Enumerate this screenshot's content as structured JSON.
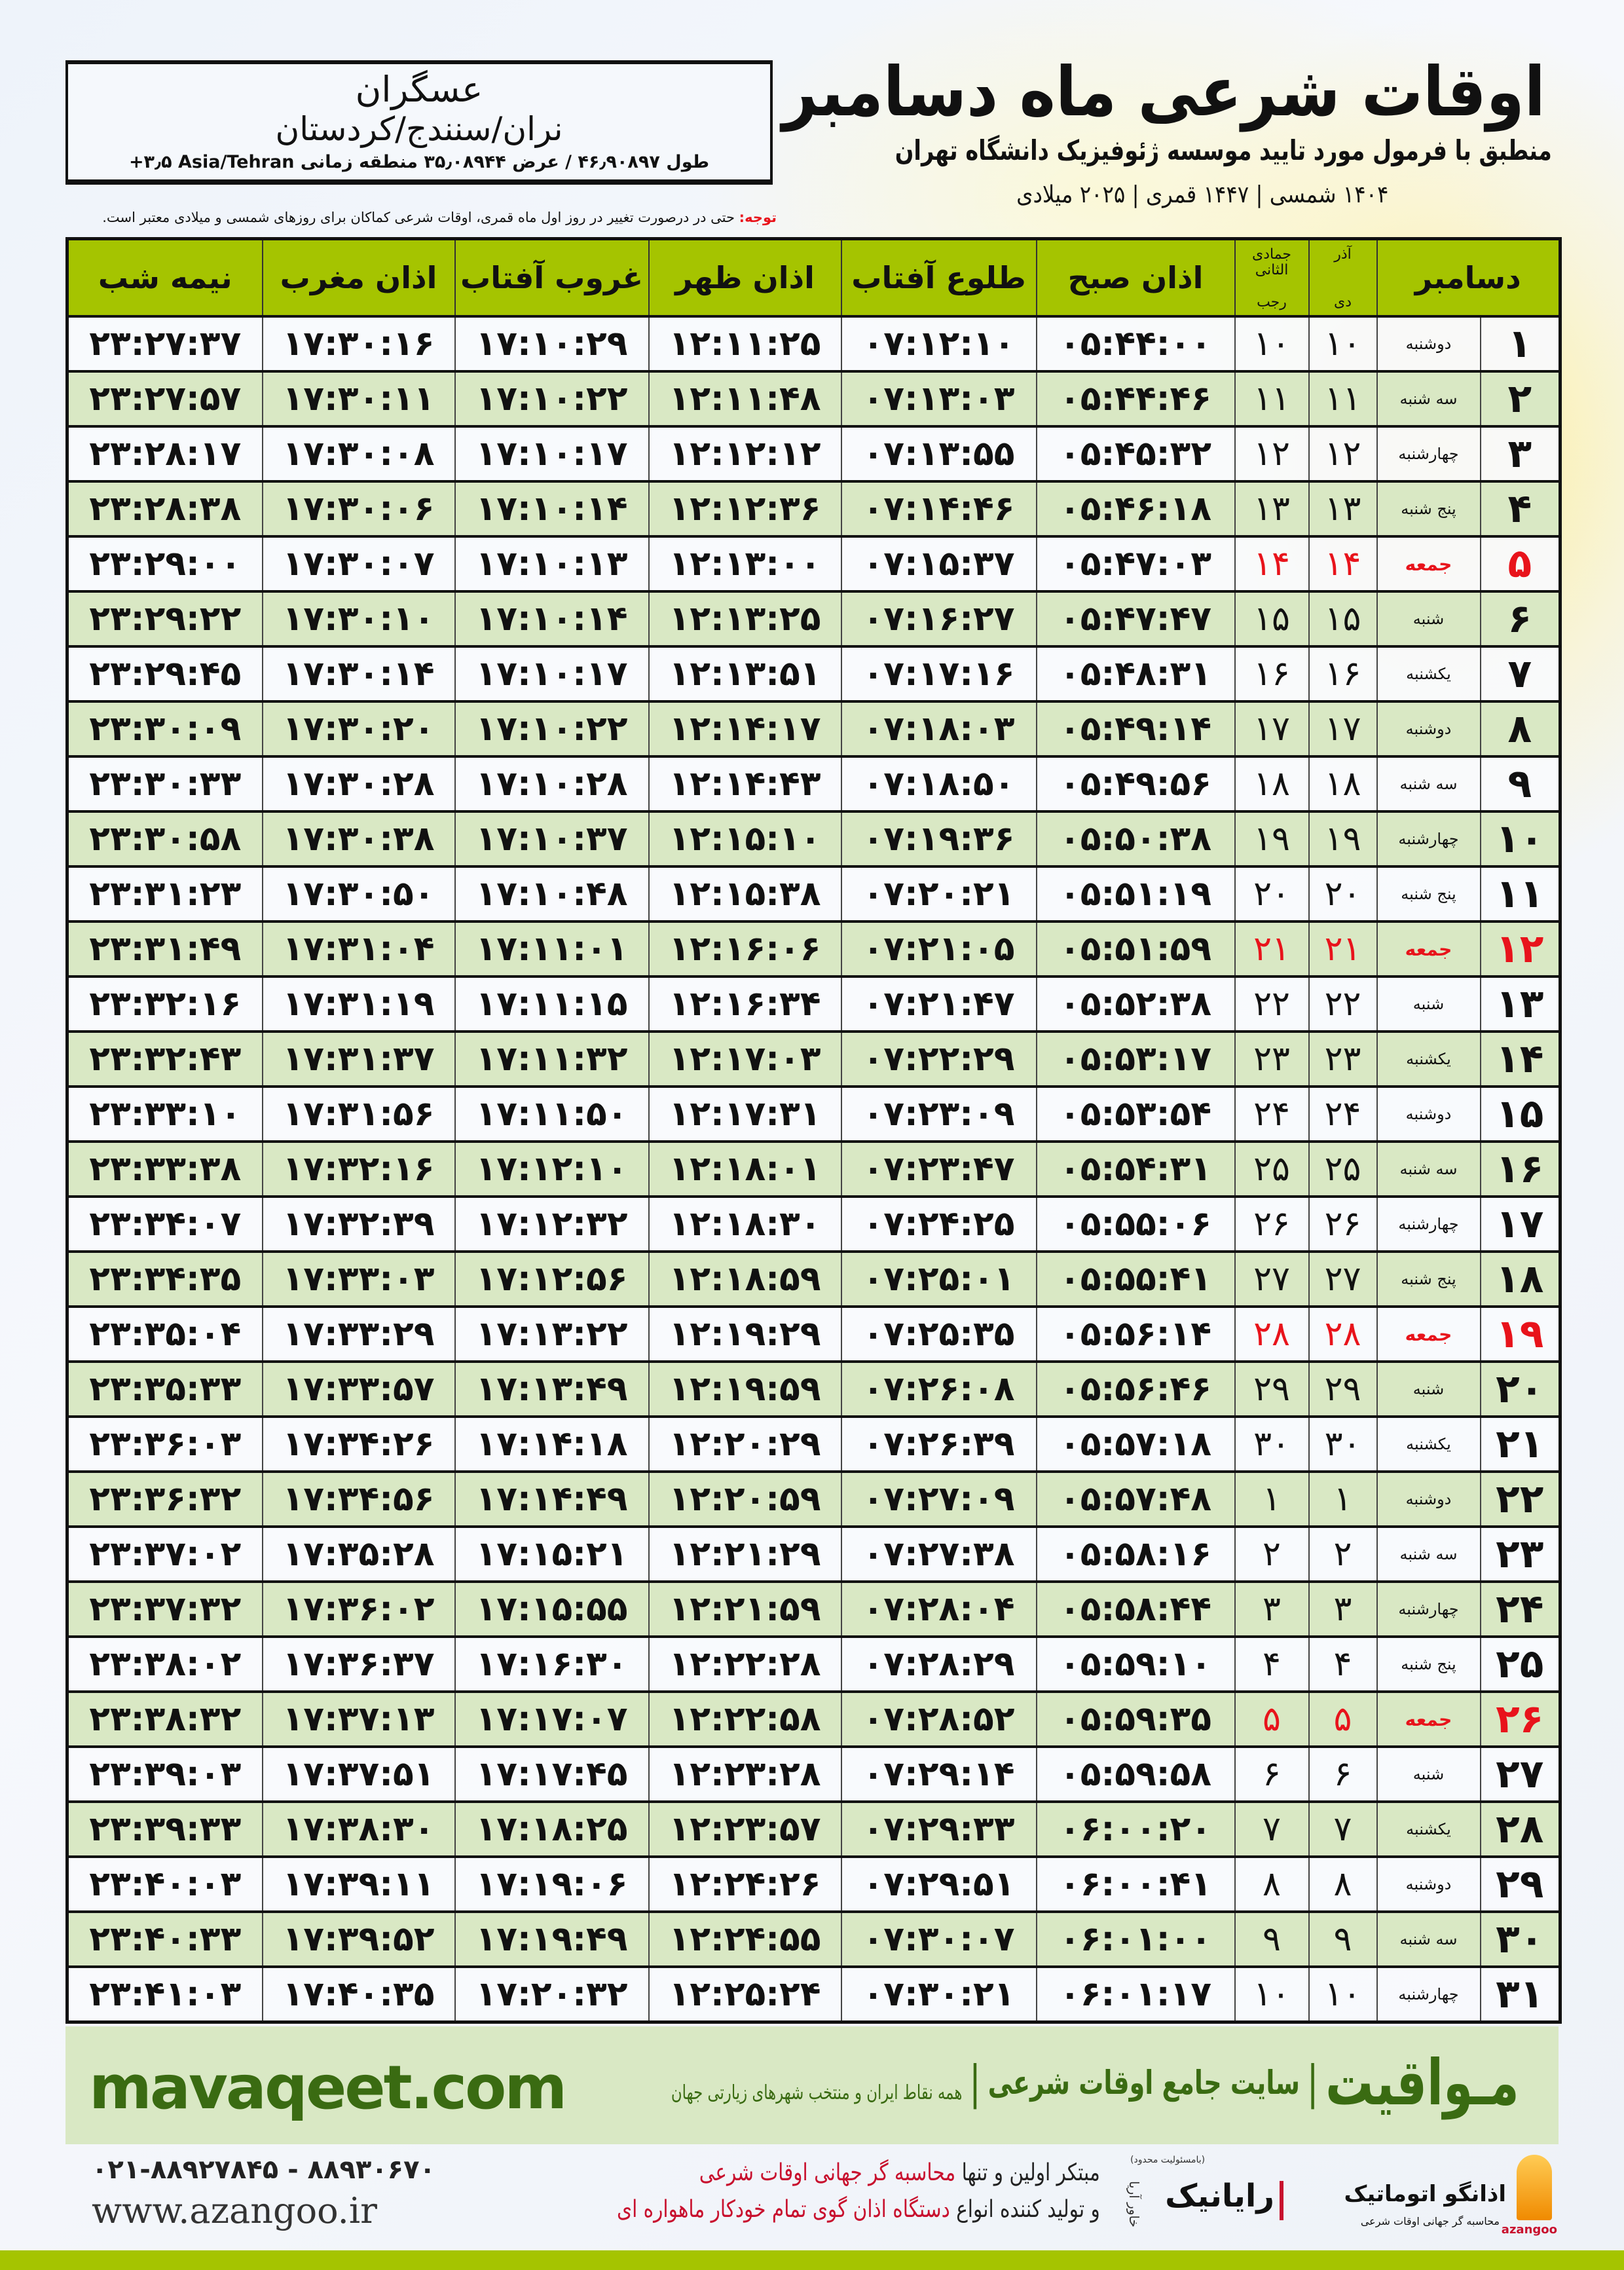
{
  "info_box": {
    "city": "عسگران",
    "region": "نران/سنندج/کردستان",
    "coords": "طول ۴۶٫۹۰۸۹۷ / عرض ۳۵٫۰۸۹۴۴ منطقه زمانی ‎+۳٫۵ Asia/Tehran"
  },
  "header": {
    "title": "اوقات شرعی ماه دسامبر",
    "subtitle": "منطبق با فرمول مورد تایید موسسه ژئوفیزیک دانشگاه تهران",
    "date_line": "۱۴۰۴ شمسی | ۱۴۴۷ قمری | ۲۰۲۵ میلادی"
  },
  "note": {
    "label": "توجه:",
    "text": " حتی در درصورت تغییر در روز اول ماه قمری، اوقات شرعی کماکان برای روزهای شمسی و میلادی معتبر است."
  },
  "colors": {
    "header_green": "#a5c400",
    "row_alt": "#d9e8c4",
    "friday_red": "#e8131b",
    "brand_green": "#3a6b12"
  },
  "table": {
    "headers": {
      "month": "دسامبر",
      "dey_top": "آذر",
      "dey": "دی",
      "hijri_top": "جمادی الثانی",
      "hijri": "رجب",
      "fajr": "اذان صبح",
      "sunrise": "طلوع آفتاب",
      "dhuhr": "اذان ظهر",
      "sunset": "غروب آفتاب",
      "maghrib": "اذان مغرب",
      "midnight": "نیمه شب"
    },
    "friday_label": "جمعه",
    "rows": [
      [
        "۱",
        "دوشنبه",
        "۱۰",
        "۱۰",
        "۰۵:۴۴:۰۰",
        "۰۷:۱۲:۱۰",
        "۱۲:۱۱:۲۵",
        "۱۷:۱۰:۲۹",
        "۱۷:۳۰:۱۶",
        "۲۳:۲۷:۳۷"
      ],
      [
        "۲",
        "سه شنبه",
        "۱۱",
        "۱۱",
        "۰۵:۴۴:۴۶",
        "۰۷:۱۳:۰۳",
        "۱۲:۱۱:۴۸",
        "۱۷:۱۰:۲۲",
        "۱۷:۳۰:۱۱",
        "۲۳:۲۷:۵۷"
      ],
      [
        "۳",
        "چهارشنبه",
        "۱۲",
        "۱۲",
        "۰۵:۴۵:۳۲",
        "۰۷:۱۳:۵۵",
        "۱۲:۱۲:۱۲",
        "۱۷:۱۰:۱۷",
        "۱۷:۳۰:۰۸",
        "۲۳:۲۸:۱۷"
      ],
      [
        "۴",
        "پنج شنبه",
        "۱۳",
        "۱۳",
        "۰۵:۴۶:۱۸",
        "۰۷:۱۴:۴۶",
        "۱۲:۱۲:۳۶",
        "۱۷:۱۰:۱۴",
        "۱۷:۳۰:۰۶",
        "۲۳:۲۸:۳۸"
      ],
      [
        "۵",
        "جمعه",
        "۱۴",
        "۱۴",
        "۰۵:۴۷:۰۳",
        "۰۷:۱۵:۳۷",
        "۱۲:۱۳:۰۰",
        "۱۷:۱۰:۱۳",
        "۱۷:۳۰:۰۷",
        "۲۳:۲۹:۰۰"
      ],
      [
        "۶",
        "شنبه",
        "۱۵",
        "۱۵",
        "۰۵:۴۷:۴۷",
        "۰۷:۱۶:۲۷",
        "۱۲:۱۳:۲۵",
        "۱۷:۱۰:۱۴",
        "۱۷:۳۰:۱۰",
        "۲۳:۲۹:۲۲"
      ],
      [
        "۷",
        "یکشنبه",
        "۱۶",
        "۱۶",
        "۰۵:۴۸:۳۱",
        "۰۷:۱۷:۱۶",
        "۱۲:۱۳:۵۱",
        "۱۷:۱۰:۱۷",
        "۱۷:۳۰:۱۴",
        "۲۳:۲۹:۴۵"
      ],
      [
        "۸",
        "دوشنبه",
        "۱۷",
        "۱۷",
        "۰۵:۴۹:۱۴",
        "۰۷:۱۸:۰۳",
        "۱۲:۱۴:۱۷",
        "۱۷:۱۰:۲۲",
        "۱۷:۳۰:۲۰",
        "۲۳:۳۰:۰۹"
      ],
      [
        "۹",
        "سه شنبه",
        "۱۸",
        "۱۸",
        "۰۵:۴۹:۵۶",
        "۰۷:۱۸:۵۰",
        "۱۲:۱۴:۴۳",
        "۱۷:۱۰:۲۸",
        "۱۷:۳۰:۲۸",
        "۲۳:۳۰:۳۳"
      ],
      [
        "۱۰",
        "چهارشنبه",
        "۱۹",
        "۱۹",
        "۰۵:۵۰:۳۸",
        "۰۷:۱۹:۳۶",
        "۱۲:۱۵:۱۰",
        "۱۷:۱۰:۳۷",
        "۱۷:۳۰:۳۸",
        "۲۳:۳۰:۵۸"
      ],
      [
        "۱۱",
        "پنج شنبه",
        "۲۰",
        "۲۰",
        "۰۵:۵۱:۱۹",
        "۰۷:۲۰:۲۱",
        "۱۲:۱۵:۳۸",
        "۱۷:۱۰:۴۸",
        "۱۷:۳۰:۵۰",
        "۲۳:۳۱:۲۳"
      ],
      [
        "۱۲",
        "جمعه",
        "۲۱",
        "۲۱",
        "۰۵:۵۱:۵۹",
        "۰۷:۲۱:۰۵",
        "۱۲:۱۶:۰۶",
        "۱۷:۱۱:۰۱",
        "۱۷:۳۱:۰۴",
        "۲۳:۳۱:۴۹"
      ],
      [
        "۱۳",
        "شنبه",
        "۲۲",
        "۲۲",
        "۰۵:۵۲:۳۸",
        "۰۷:۲۱:۴۷",
        "۱۲:۱۶:۳۴",
        "۱۷:۱۱:۱۵",
        "۱۷:۳۱:۱۹",
        "۲۳:۳۲:۱۶"
      ],
      [
        "۱۴",
        "یکشنبه",
        "۲۳",
        "۲۳",
        "۰۵:۵۳:۱۷",
        "۰۷:۲۲:۲۹",
        "۱۲:۱۷:۰۳",
        "۱۷:۱۱:۳۲",
        "۱۷:۳۱:۳۷",
        "۲۳:۳۲:۴۳"
      ],
      [
        "۱۵",
        "دوشنبه",
        "۲۴",
        "۲۴",
        "۰۵:۵۳:۵۴",
        "۰۷:۲۳:۰۹",
        "۱۲:۱۷:۳۱",
        "۱۷:۱۱:۵۰",
        "۱۷:۳۱:۵۶",
        "۲۳:۳۳:۱۰"
      ],
      [
        "۱۶",
        "سه شنبه",
        "۲۵",
        "۲۵",
        "۰۵:۵۴:۳۱",
        "۰۷:۲۳:۴۷",
        "۱۲:۱۸:۰۱",
        "۱۷:۱۲:۱۰",
        "۱۷:۳۲:۱۶",
        "۲۳:۳۳:۳۸"
      ],
      [
        "۱۷",
        "چهارشنبه",
        "۲۶",
        "۲۶",
        "۰۵:۵۵:۰۶",
        "۰۷:۲۴:۲۵",
        "۱۲:۱۸:۳۰",
        "۱۷:۱۲:۳۲",
        "۱۷:۳۲:۳۹",
        "۲۳:۳۴:۰۷"
      ],
      [
        "۱۸",
        "پنج شنبه",
        "۲۷",
        "۲۷",
        "۰۵:۵۵:۴۱",
        "۰۷:۲۵:۰۱",
        "۱۲:۱۸:۵۹",
        "۱۷:۱۲:۵۶",
        "۱۷:۳۳:۰۳",
        "۲۳:۳۴:۳۵"
      ],
      [
        "۱۹",
        "جمعه",
        "۲۸",
        "۲۸",
        "۰۵:۵۶:۱۴",
        "۰۷:۲۵:۳۵",
        "۱۲:۱۹:۲۹",
        "۱۷:۱۳:۲۲",
        "۱۷:۳۳:۲۹",
        "۲۳:۳۵:۰۴"
      ],
      [
        "۲۰",
        "شنبه",
        "۲۹",
        "۲۹",
        "۰۵:۵۶:۴۶",
        "۰۷:۲۶:۰۸",
        "۱۲:۱۹:۵۹",
        "۱۷:۱۳:۴۹",
        "۱۷:۳۳:۵۷",
        "۲۳:۳۵:۳۳"
      ],
      [
        "۲۱",
        "یکشنبه",
        "۳۰",
        "۳۰",
        "۰۵:۵۷:۱۸",
        "۰۷:۲۶:۳۹",
        "۱۲:۲۰:۲۹",
        "۱۷:۱۴:۱۸",
        "۱۷:۳۴:۲۶",
        "۲۳:۳۶:۰۳"
      ],
      [
        "۲۲",
        "دوشنبه",
        "۱",
        "۱",
        "۰۵:۵۷:۴۸",
        "۰۷:۲۷:۰۹",
        "۱۲:۲۰:۵۹",
        "۱۷:۱۴:۴۹",
        "۱۷:۳۴:۵۶",
        "۲۳:۳۶:۳۲"
      ],
      [
        "۲۳",
        "سه شنبه",
        "۲",
        "۲",
        "۰۵:۵۸:۱۶",
        "۰۷:۲۷:۳۸",
        "۱۲:۲۱:۲۹",
        "۱۷:۱۵:۲۱",
        "۱۷:۳۵:۲۸",
        "۲۳:۳۷:۰۲"
      ],
      [
        "۲۴",
        "چهارشنبه",
        "۳",
        "۳",
        "۰۵:۵۸:۴۴",
        "۰۷:۲۸:۰۴",
        "۱۲:۲۱:۵۹",
        "۱۷:۱۵:۵۵",
        "۱۷:۳۶:۰۲",
        "۲۳:۳۷:۳۲"
      ],
      [
        "۲۵",
        "پنج شنبه",
        "۴",
        "۴",
        "۰۵:۵۹:۱۰",
        "۰۷:۲۸:۲۹",
        "۱۲:۲۲:۲۸",
        "۱۷:۱۶:۳۰",
        "۱۷:۳۶:۳۷",
        "۲۳:۳۸:۰۲"
      ],
      [
        "۲۶",
        "جمعه",
        "۵",
        "۵",
        "۰۵:۵۹:۳۵",
        "۰۷:۲۸:۵۲",
        "۱۲:۲۲:۵۸",
        "۱۷:۱۷:۰۷",
        "۱۷:۳۷:۱۳",
        "۲۳:۳۸:۳۲"
      ],
      [
        "۲۷",
        "شنبه",
        "۶",
        "۶",
        "۰۵:۵۹:۵۸",
        "۰۷:۲۹:۱۴",
        "۱۲:۲۳:۲۸",
        "۱۷:۱۷:۴۵",
        "۱۷:۳۷:۵۱",
        "۲۳:۳۹:۰۳"
      ],
      [
        "۲۸",
        "یکشنبه",
        "۷",
        "۷",
        "۰۶:۰۰:۲۰",
        "۰۷:۲۹:۳۳",
        "۱۲:۲۳:۵۷",
        "۱۷:۱۸:۲۵",
        "۱۷:۳۸:۳۰",
        "۲۳:۳۹:۳۳"
      ],
      [
        "۲۹",
        "دوشنبه",
        "۸",
        "۸",
        "۰۶:۰۰:۴۱",
        "۰۷:۲۹:۵۱",
        "۱۲:۲۴:۲۶",
        "۱۷:۱۹:۰۶",
        "۱۷:۳۹:۱۱",
        "۲۳:۴۰:۰۳"
      ],
      [
        "۳۰",
        "سه شنبه",
        "۹",
        "۹",
        "۰۶:۰۱:۰۰",
        "۰۷:۳۰:۰۷",
        "۱۲:۲۴:۵۵",
        "۱۷:۱۹:۴۹",
        "۱۷:۳۹:۵۲",
        "۲۳:۴۰:۳۳"
      ],
      [
        "۳۱",
        "چهارشنبه",
        "۱۰",
        "۱۰",
        "۰۶:۰۱:۱۷",
        "۰۷:۳۰:۲۱",
        "۱۲:۲۵:۲۴",
        "۱۷:۲۰:۳۲",
        "۱۷:۴۰:۳۵",
        "۲۳:۴۱:۰۳"
      ]
    ]
  },
  "footer": {
    "brand": "مـواقیت",
    "separator": "|",
    "tagline": "سایت جامع اوقات شرعی",
    "subline": "همه نقاط ایران و منتخب شهرهای زیارتی جهان",
    "url": "mavaqeet.com"
  },
  "contact": {
    "phone": "۰۲۱-۸۸۹۲۷۸۴۵ - ۸۸۹۳۰۶۷۰",
    "site": "www.azangoo.ir",
    "line1_plain": "مبتکر اولین و تنها ",
    "line1_red": "محاسبه گر جهانی اوقات شرعی",
    "line2_plain": "و تولید کننده انواع ",
    "line2_red": "دستگاه اذان گوی تمام خودکار ماهواره ای",
    "rayanik_name": "رایانیک",
    "rayanik_sub": "خاور آریا",
    "rayanik_note": "(بامسئولیت محدود)",
    "azangoo_name": "اذانگو اتوماتیک",
    "azangoo_sub": "محاسبه گر جهانی اوقات شرعی",
    "azangoo_latin": "azangoo"
  }
}
